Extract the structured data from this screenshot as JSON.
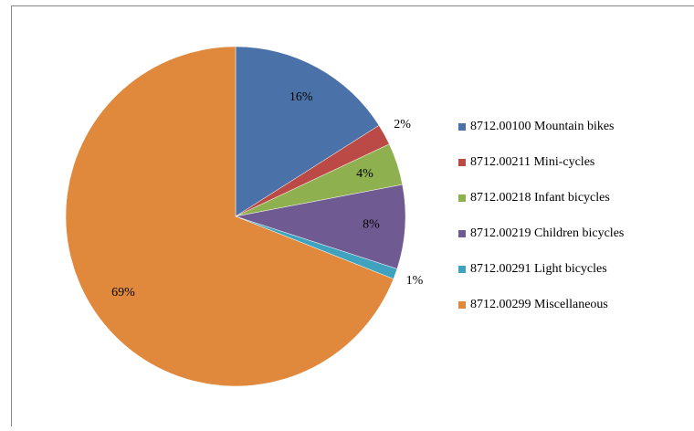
{
  "chart_data": {
    "type": "pie",
    "categories": [
      "8712.00100 Mountain bikes",
      "8712.00211 Mini-cycles",
      "8712.00218 Infant bicycles",
      "8712.00219 Children bicycles",
      "8712.00291 Light bicycles",
      "8712.00299 Miscellaneous"
    ],
    "values": [
      16,
      2,
      4,
      8,
      1,
      69
    ],
    "value_labels": [
      "16%",
      "2%",
      "4%",
      "8%",
      "1%",
      "69%"
    ],
    "colors": [
      "#4a72a8",
      "#bb4a47",
      "#8fb04f",
      "#705a92",
      "#3fa3c0",
      "#e0883c"
    ],
    "legend": "right"
  }
}
